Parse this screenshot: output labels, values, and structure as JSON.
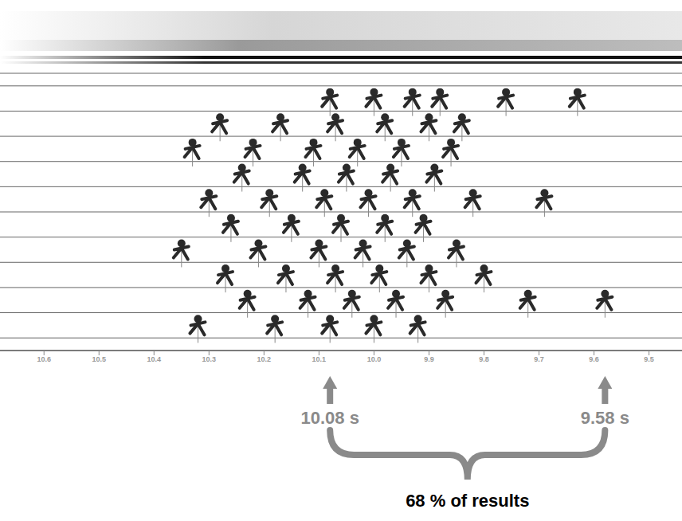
{
  "chart_data": {
    "type": "scatter",
    "x": [
      10.08,
      10.0,
      9.93,
      9.88,
      9.76,
      9.63,
      10.28,
      10.17,
      10.07,
      9.98,
      9.9,
      9.84,
      10.33,
      10.22,
      10.11,
      10.03,
      9.95,
      9.86,
      10.24,
      10.13,
      10.05,
      9.97,
      9.89,
      10.3,
      10.19,
      10.09,
      10.01,
      9.93,
      9.82,
      9.69,
      10.26,
      10.15,
      10.06,
      9.98,
      9.91,
      10.35,
      10.21,
      10.1,
      10.02,
      9.94,
      9.85,
      10.27,
      10.16,
      10.07,
      9.99,
      9.9,
      9.8,
      10.23,
      10.12,
      10.04,
      9.96,
      9.87,
      9.72,
      9.58,
      10.32,
      10.18,
      10.08,
      10.0,
      9.92
    ],
    "values": [
      10,
      10,
      10,
      10,
      10,
      10,
      9,
      9,
      9,
      9,
      9,
      9,
      8,
      8,
      8,
      8,
      8,
      8,
      7,
      7,
      7,
      7,
      7,
      6,
      6,
      6,
      6,
      6,
      6,
      6,
      5,
      5,
      5,
      5,
      5,
      4,
      4,
      4,
      4,
      4,
      4,
      3,
      3,
      3,
      3,
      3,
      3,
      2,
      2,
      2,
      2,
      2,
      2,
      2,
      1,
      1,
      1,
      1,
      1
    ],
    "color": "#2a2a2a",
    "marker": "circle",
    "xlim": [
      10.68,
      9.44
    ],
    "xticks": [
      10.6,
      10.5,
      10.4,
      10.3,
      10.2,
      10.1,
      {
        "value": 10,
        "label": "10.0"
      },
      9.9,
      9.8,
      9.7,
      9.6,
      9.5
    ],
    "ylim": [
      0,
      11
    ],
    "yticks": [
      0.5,
      1.5,
      2.5,
      3.5,
      4.5,
      5.5,
      6.5,
      7.5,
      8.5,
      9.5,
      10.5
    ],
    "grid": true,
    "tick_labels": "x",
    "annotations": {
      "range": [
        10.08,
        9.58
      ],
      "labels": [
        "10.08 s",
        "9.58 s"
      ],
      "text": "68 % of results"
    }
  }
}
